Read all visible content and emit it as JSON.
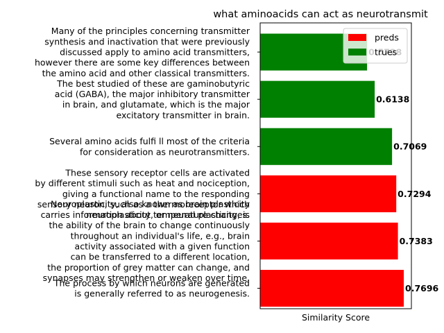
{
  "chart_data": {
    "type": "bar",
    "orientation": "horizontal",
    "title": "what aminoacids can act as neurotransmit",
    "xlabel": "Similarity Score",
    "ylabel": "",
    "xlim": [
      0,
      1.0
    ],
    "legend": {
      "placement": "top-right",
      "entries": [
        {
          "name": "preds",
          "color": "#ff0000"
        },
        {
          "name": "trues",
          "color": "#008000"
        }
      ]
    },
    "bars": [
      {
        "label": [
          "Many of the principles concerning transmitter",
          "synthesis and inactivation that were previously",
          "discussed apply to amino acid transmitters,",
          "however there are some key differences between",
          "the amino acid and other classical transmitters."
        ],
        "value": 0.5728,
        "value_label": "0.5728",
        "group": "trues",
        "color": "#008000"
      },
      {
        "label": [
          "The best studied of these are gaminobutyric",
          "acid (GABA), the major inhibitory transmitter",
          "in brain, and glutamate, which is the major",
          "excitatory transmitter in brain."
        ],
        "value": 0.6138,
        "value_label": "0.6138",
        "group": "trues",
        "color": "#008000"
      },
      {
        "label": [
          "Several amino acids fulfi ll most of the criteria",
          "for consideration as neurotransmitters."
        ],
        "value": 0.7069,
        "value_label": "0.7069",
        "group": "trues",
        "color": "#008000"
      },
      {
        "label": [
          "These sensory receptor cells are activated",
          "by different stimuli such as heat and nociception,",
          "giving a functional name to the responding",
          "sensory neuron, such as a thermoreceptor which",
          "carries information about temperature changes."
        ],
        "value": 0.7294,
        "value_label": "0.7294",
        "group": "preds",
        "color": "#ff0000"
      },
      {
        "label": [
          "Neuroplasticity, also known as brain plasticity",
          "neuroplasticity, or neural plasticity, is",
          "the ability of the brain to change continuously",
          "throughout an individual's life, e.g., brain",
          "activity associated with a given function",
          "can be transferred to a different location,",
          "the proportion of grey matter can change, and",
          "synapses may strengthen or weaken over time."
        ],
        "value": 0.7383,
        "value_label": "0.7383",
        "group": "preds",
        "color": "#ff0000"
      },
      {
        "label": [
          "The process by which neurons are generated",
          "is generally referred to as neurogenesis."
        ],
        "value": 0.7696,
        "value_label": "0.7696",
        "group": "preds",
        "color": "#ff0000"
      }
    ]
  }
}
